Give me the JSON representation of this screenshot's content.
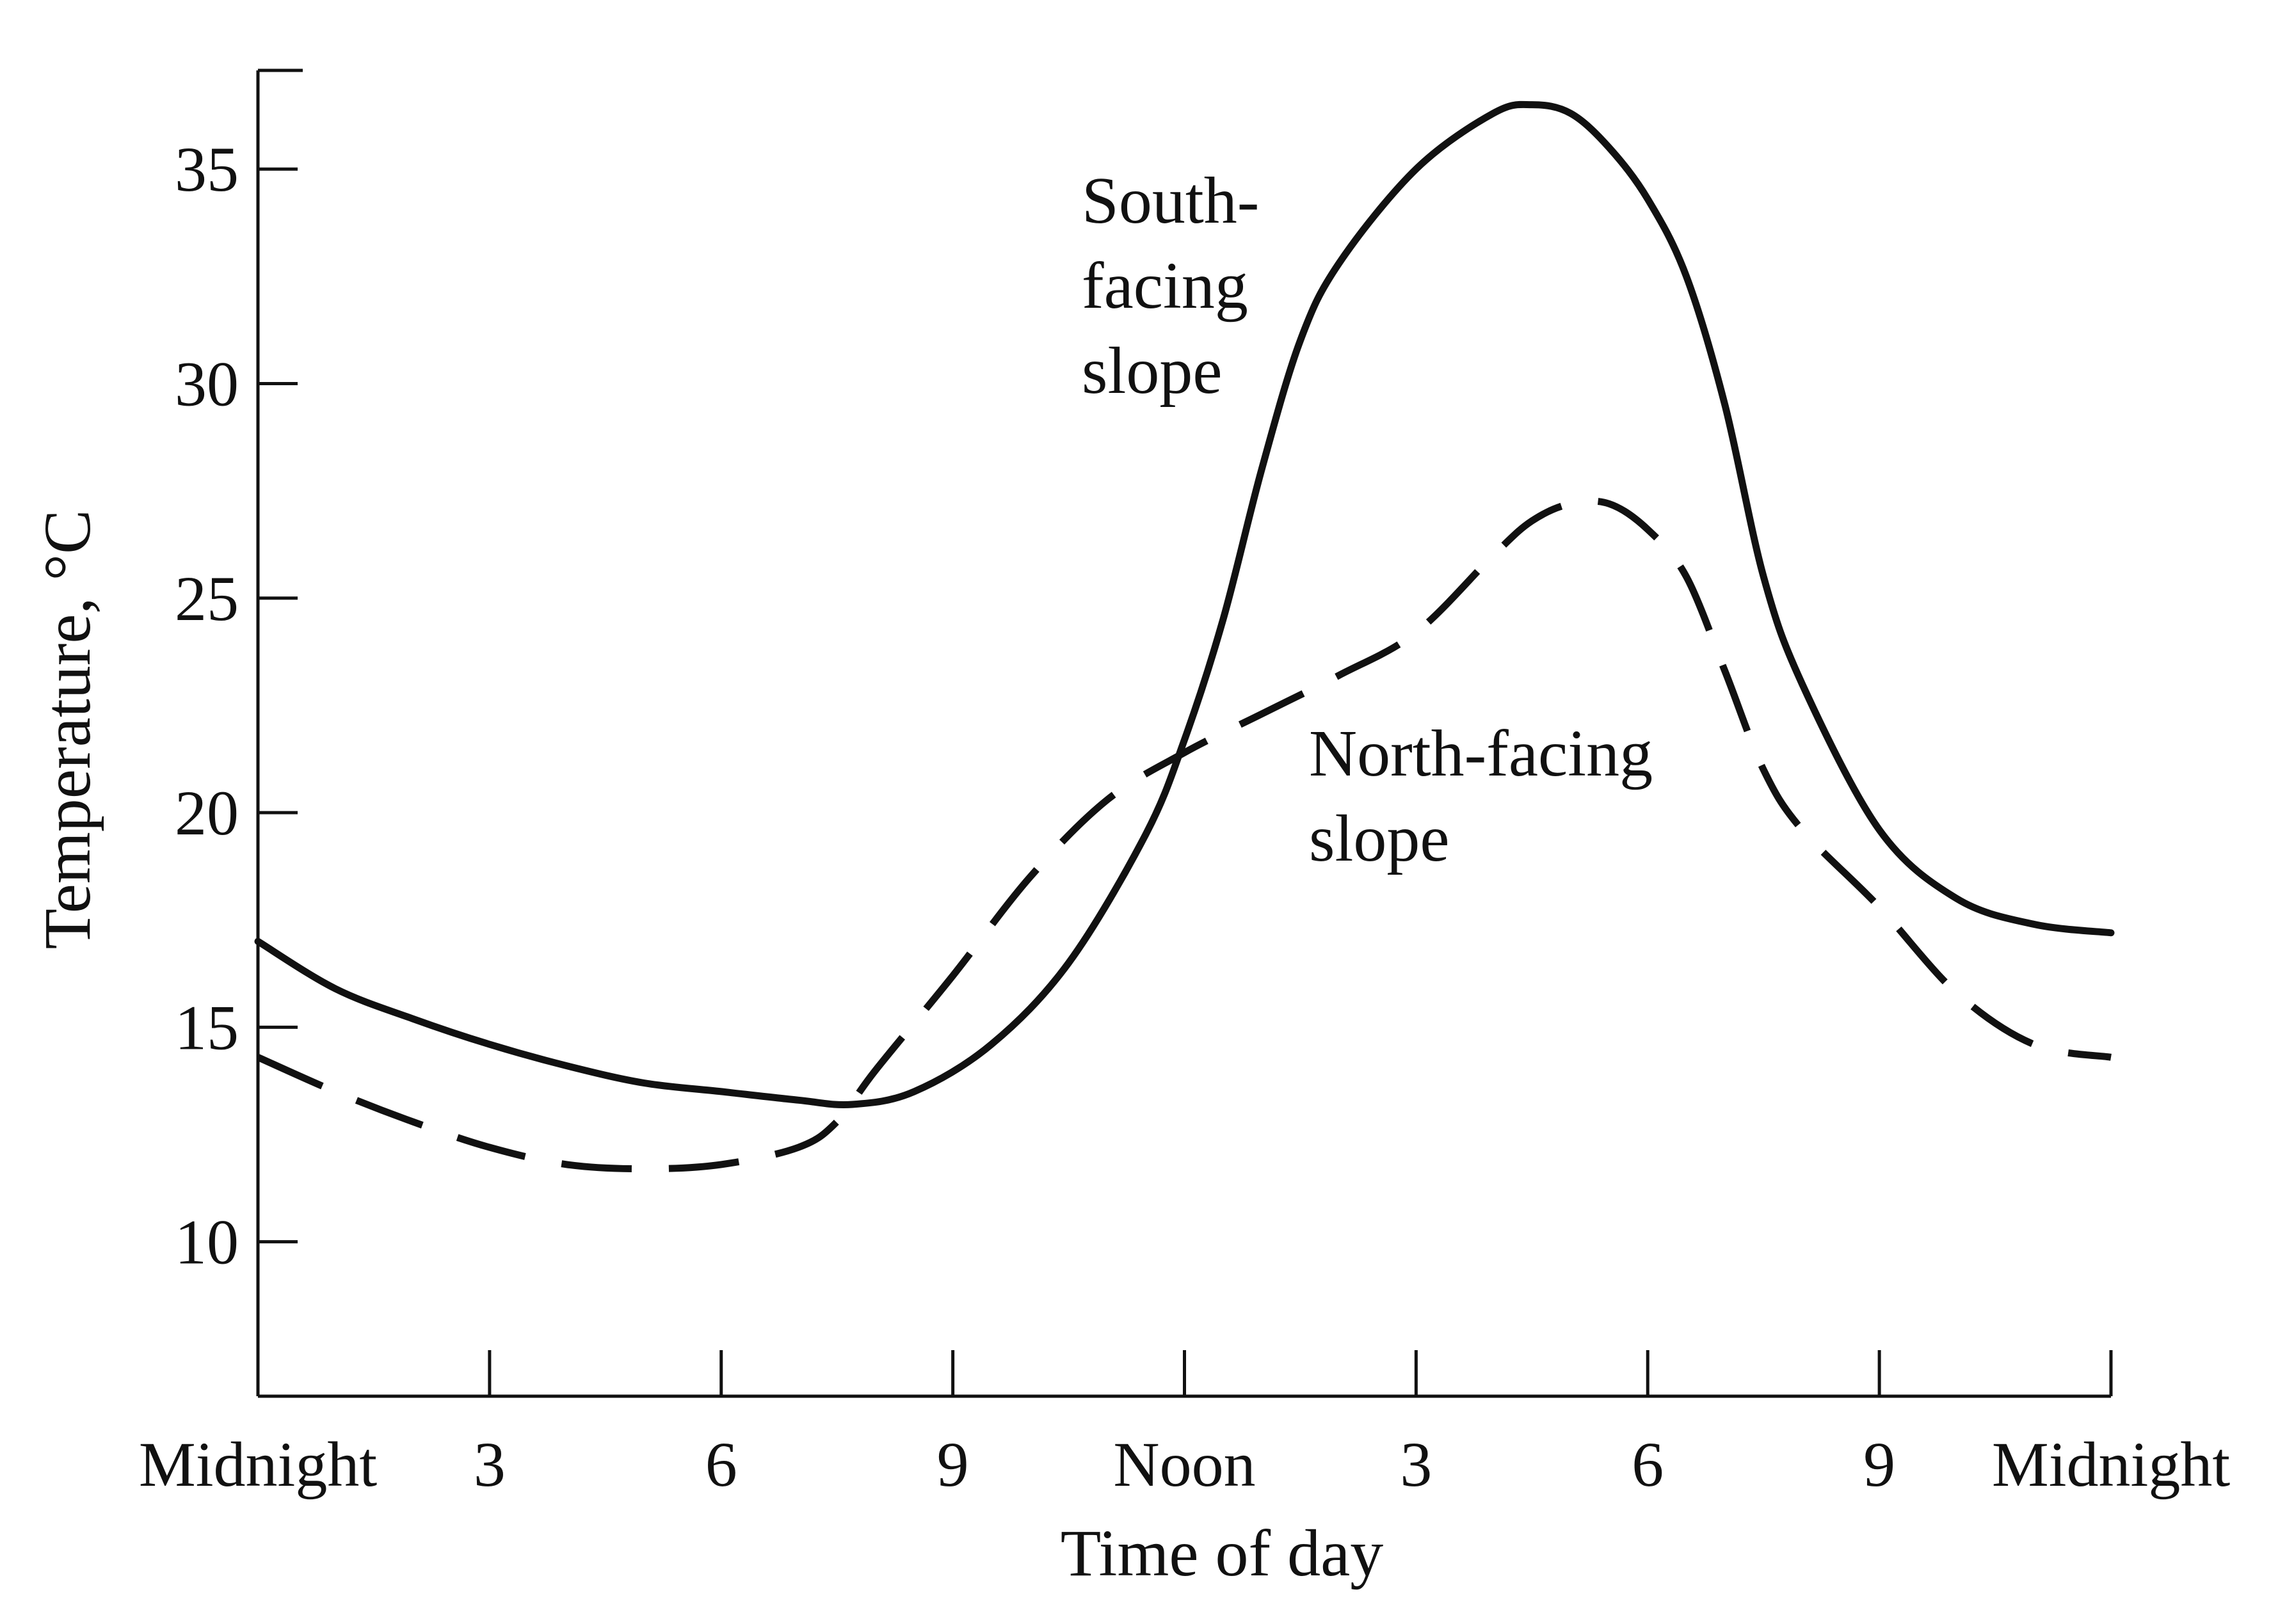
{
  "chart_data": {
    "type": "line",
    "title": "",
    "xlabel": "Time of day",
    "ylabel": "Temperature, °C",
    "x_ticks": [
      {
        "hour": 0,
        "label": "Midnight"
      },
      {
        "hour": 3,
        "label": "3"
      },
      {
        "hour": 6,
        "label": "6"
      },
      {
        "hour": 9,
        "label": "9"
      },
      {
        "hour": 12,
        "label": "Noon"
      },
      {
        "hour": 15,
        "label": "3"
      },
      {
        "hour": 18,
        "label": "6"
      },
      {
        "hour": 21,
        "label": "9"
      },
      {
        "hour": 24,
        "label": "Midnight"
      }
    ],
    "y_ticks": [
      10,
      15,
      20,
      25,
      30,
      35
    ],
    "xlim": [
      0,
      24
    ],
    "ylim": [
      6.4,
      37.3
    ],
    "grid": false,
    "legend": "none",
    "series": [
      {
        "name": "South-facing slope",
        "style": "solid",
        "x": [
          0,
          1,
          2,
          3,
          4,
          5,
          6,
          7,
          7.7,
          8.5,
          9.5,
          10.5,
          11.5,
          12,
          12.5,
          13,
          13.5,
          14,
          15,
          16,
          16.5,
          17,
          17.5,
          18,
          18.5,
          19,
          19.5,
          20,
          21,
          22,
          23,
          24
        ],
        "y": [
          17.0,
          15.9,
          15.2,
          14.6,
          14.1,
          13.7,
          13.5,
          13.3,
          13.2,
          13.5,
          14.6,
          16.5,
          19.5,
          21.7,
          24.5,
          28.0,
          31.0,
          32.8,
          35.0,
          36.3,
          36.5,
          36.3,
          35.5,
          34.3,
          32.5,
          29.5,
          25.5,
          23.0,
          19.6,
          18.0,
          17.4,
          17.2
        ]
      },
      {
        "name": "North-facing slope",
        "style": "dashed",
        "x": [
          0,
          1,
          2,
          3,
          4,
          5,
          6,
          7,
          7.5,
          8,
          9,
          10,
          11,
          12,
          13,
          14,
          15,
          16,
          16.5,
          17,
          17.5,
          18,
          18.5,
          19,
          19.5,
          20,
          21,
          22,
          23,
          24
        ],
        "y": [
          14.3,
          13.5,
          12.8,
          12.2,
          11.8,
          11.7,
          11.8,
          12.2,
          12.8,
          14.0,
          16.2,
          18.5,
          20.3,
          21.4,
          22.3,
          23.2,
          24.2,
          26.0,
          26.8,
          27.2,
          27.2,
          26.6,
          25.5,
          23.3,
          21.0,
          19.6,
          17.8,
          15.8,
          14.6,
          14.3
        ]
      }
    ],
    "annotations": [
      {
        "text": [
          "South-",
          "facing",
          "slope"
        ],
        "series": "South-facing slope"
      },
      {
        "text": [
          "North-facing",
          "slope"
        ],
        "series": "North-facing slope"
      }
    ]
  }
}
